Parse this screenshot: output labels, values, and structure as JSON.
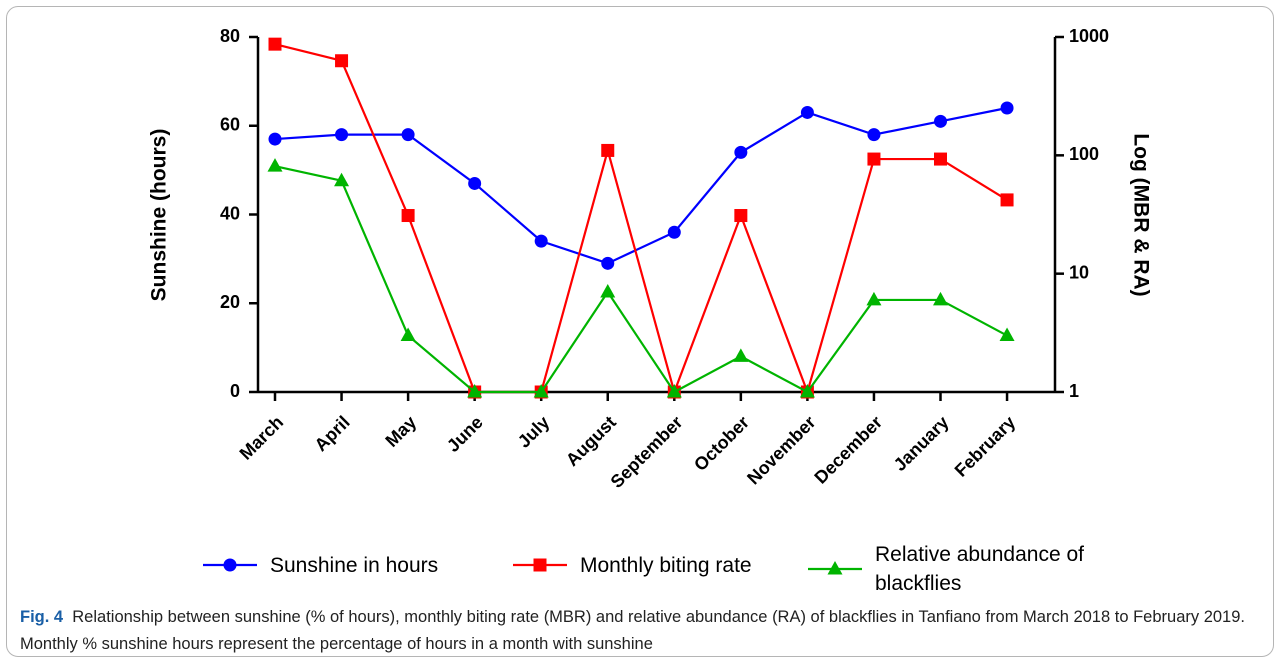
{
  "chart_data": {
    "type": "line",
    "categories": [
      "March",
      "April",
      "May",
      "June",
      "July",
      "August",
      "September",
      "October",
      "November",
      "December",
      "January",
      "February"
    ],
    "ylabel": "Sunshine (hours)",
    "y2label": "Log (MBR & RA)",
    "ylim": [
      0,
      80
    ],
    "yticks": [
      0,
      20,
      40,
      60,
      80
    ],
    "y2lim": [
      1,
      1000
    ],
    "y2ticks": [
      1,
      10,
      100,
      1000
    ],
    "y2log": true,
    "series": [
      {
        "name": "Sunshine in hours",
        "color": "#0000ff",
        "marker": "circle",
        "values": [
          57,
          58,
          58,
          47,
          34,
          29,
          36,
          54,
          63,
          58,
          61,
          64
        ]
      },
      {
        "name": "Monthly biting rate",
        "color": "#ff0000",
        "marker": "square",
        "axis": "y2",
        "values": [
          870,
          630,
          31,
          1,
          1,
          110,
          1,
          31,
          1,
          93,
          93,
          42
        ]
      },
      {
        "name": "Relative abundance of blackflies",
        "color": "#00b400",
        "marker": "triangle",
        "axis": "y2",
        "values": [
          81,
          61,
          3,
          1,
          1,
          7,
          1,
          2,
          1,
          6,
          6,
          3
        ]
      }
    ],
    "caption": {
      "label": "Fig. 4",
      "text": "Relationship between sunshine (% of hours), monthly biting rate (MBR) and relative abundance (RA) of blackflies in Tanfiano from March 2018 to February 2019. Monthly % sunshine hours represent the percentage of hours in a month with sunshine"
    }
  }
}
